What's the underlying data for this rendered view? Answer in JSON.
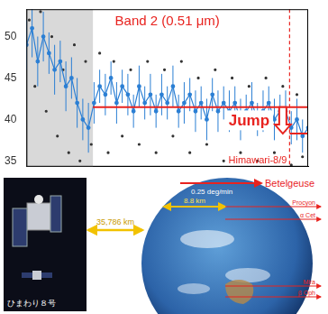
{
  "chart_data": {
    "type": "line",
    "title": "Band 2 (0.51 μm)",
    "xlim": [
      0,
      100
    ],
    "ylim": [
      34.3,
      53.3
    ],
    "yticks": [
      35,
      40,
      45,
      50
    ],
    "tick_labels": "y",
    "grid": false,
    "series": [
      {
        "color": "#2b7fd4",
        "marker": "circle",
        "line_style": "solid",
        "x": [
          0,
          2,
          4,
          6,
          8,
          10,
          12,
          14,
          16,
          18,
          20,
          22,
          24,
          26,
          28,
          30,
          32,
          34,
          36,
          38,
          40,
          42,
          44,
          46,
          48,
          50,
          52,
          54,
          56,
          58,
          60,
          62,
          64,
          66,
          68,
          70,
          72,
          74,
          76,
          78,
          80,
          82,
          84,
          86,
          88,
          90,
          92,
          94,
          96,
          98,
          100
        ],
        "values": [
          49,
          51,
          47,
          50,
          48,
          46,
          47,
          44,
          45,
          42,
          40,
          39,
          42,
          44,
          43,
          45,
          42,
          44,
          43,
          41,
          44,
          42,
          43,
          41,
          43,
          42,
          44,
          41,
          42,
          43,
          41,
          42,
          40,
          43,
          41,
          42,
          41,
          42,
          40,
          41,
          42,
          40,
          41,
          42,
          40,
          41,
          41,
          39,
          40,
          38,
          39
        ],
        "errors": [
          3,
          3.5,
          3,
          3,
          2.5,
          3,
          2.5,
          3,
          2.5,
          3,
          2.5,
          3,
          2.5,
          2,
          2.5,
          2,
          2.5,
          2,
          2.5,
          2,
          2.5,
          2,
          2.5,
          2,
          2.5,
          2,
          2.5,
          2,
          2.5,
          2,
          2.5,
          2,
          2.5,
          2,
          2.5,
          2,
          2.5,
          2,
          2.5,
          2,
          2.5,
          2,
          2.5,
          2,
          2.5,
          2,
          2.5,
          2,
          2.5,
          2,
          2.5
        ]
      },
      {
        "color": "#333333",
        "marker": "dot",
        "line_style": "none",
        "x": [
          1,
          3,
          5,
          7,
          9,
          11,
          13,
          15,
          17,
          19,
          21,
          23,
          26,
          29,
          31,
          34,
          37,
          40,
          43,
          46,
          49,
          52,
          55,
          58,
          61,
          64,
          67,
          70,
          73,
          76,
          79,
          82,
          85,
          88,
          91,
          94,
          96,
          98
        ],
        "values": [
          52,
          44,
          53,
          41,
          50,
          38,
          46,
          36,
          49,
          35,
          47,
          37,
          48,
          36,
          47,
          38,
          46,
          37,
          47,
          36,
          46,
          38,
          47,
          36,
          45,
          37,
          46,
          35,
          45,
          36,
          44,
          35,
          45,
          36,
          44,
          34.5,
          43,
          35.5
        ]
      }
    ],
    "shaded": {
      "x": [
        0,
        23.6
      ],
      "color": "#d9d9d9"
    },
    "reference_lines": [
      {
        "y": 41.5,
        "x": [
          23.6,
          100
        ],
        "color": "#e8231f"
      },
      {
        "y": 38.3,
        "x": [
          93.4,
          100
        ],
        "color": "#e8231f"
      }
    ],
    "vlines": [
      {
        "x": 93.4,
        "color": "#e8231f",
        "line_style": "dashed"
      }
    ],
    "annotations": [
      {
        "text": "Himawari-8/9",
        "x": 93.4,
        "y": 35,
        "color": "#e8231f"
      }
    ],
    "jump": {
      "text": "Jump",
      "x": 91,
      "from": 41.5,
      "to": 38.3,
      "color": "#e8231f"
    }
  },
  "diagram": {
    "satellite_label": "ひまわり８号",
    "distance": "35,786 km",
    "resolution": "8.8 km",
    "scan_rate": "0.25 deg/min",
    "stars": [
      "Betelgeuse",
      "Procyon",
      "α Cet",
      "Mira",
      "β Oph"
    ]
  }
}
